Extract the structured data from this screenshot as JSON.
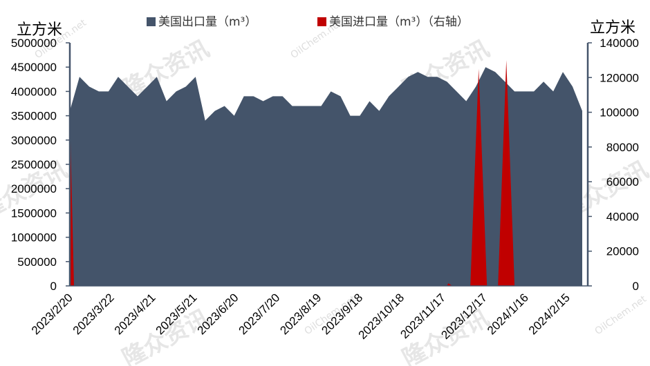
{
  "chart_data": {
    "type": "area",
    "left_unit": "立方米",
    "right_unit": "立方米",
    "legend_position": "top",
    "colors": {
      "export": "#44546a",
      "import": "#c00000",
      "axis": "#44546a"
    },
    "left_axis": {
      "ylim": [
        0,
        5000000
      ],
      "ticks": [
        "0",
        "500000",
        "1000000",
        "1500000",
        "2000000",
        "2500000",
        "3000000",
        "3500000",
        "4000000",
        "4500000",
        "5000000"
      ]
    },
    "right_axis": {
      "ylim": [
        0,
        140000
      ],
      "ticks": [
        "0",
        "20000",
        "40000",
        "60000",
        "80000",
        "100000",
        "120000",
        "140000"
      ]
    },
    "x_tick_labels": [
      "2023/2/20",
      "2023/3/22",
      "2023/4/21",
      "2023/5/21",
      "2023/6/20",
      "2023/7/20",
      "2023/8/19",
      "2023/9/18",
      "2023/10/18",
      "2023/11/17",
      "2023/12/17",
      "2024/1/16",
      "2024/2/15"
    ],
    "x_range": [
      "2023/2/20",
      "2024/3/1"
    ],
    "series": [
      {
        "name": "美国出口量（m³）",
        "axis": "left",
        "points": [
          [
            "2023/2/20",
            3600000
          ],
          [
            "2023/2/27",
            4300000
          ],
          [
            "2023/3/6",
            4100000
          ],
          [
            "2023/3/13",
            4000000
          ],
          [
            "2023/3/20",
            4000000
          ],
          [
            "2023/3/27",
            4300000
          ],
          [
            "2023/4/3",
            4100000
          ],
          [
            "2023/4/10",
            3900000
          ],
          [
            "2023/4/17",
            4100000
          ],
          [
            "2023/4/24",
            4300000
          ],
          [
            "2023/5/1",
            3800000
          ],
          [
            "2023/5/8",
            4000000
          ],
          [
            "2023/5/15",
            4100000
          ],
          [
            "2023/5/22",
            4300000
          ],
          [
            "2023/5/29",
            3400000
          ],
          [
            "2023/6/5",
            3600000
          ],
          [
            "2023/6/12",
            3700000
          ],
          [
            "2023/6/19",
            3500000
          ],
          [
            "2023/6/26",
            3900000
          ],
          [
            "2023/7/3",
            3900000
          ],
          [
            "2023/7/10",
            3800000
          ],
          [
            "2023/7/17",
            3900000
          ],
          [
            "2023/7/24",
            3900000
          ],
          [
            "2023/7/31",
            3700000
          ],
          [
            "2023/8/7",
            3700000
          ],
          [
            "2023/8/14",
            3700000
          ],
          [
            "2023/8/21",
            3700000
          ],
          [
            "2023/8/28",
            4000000
          ],
          [
            "2023/9/4",
            3900000
          ],
          [
            "2023/9/11",
            3500000
          ],
          [
            "2023/9/18",
            3500000
          ],
          [
            "2023/9/25",
            3800000
          ],
          [
            "2023/10/2",
            3600000
          ],
          [
            "2023/10/9",
            3900000
          ],
          [
            "2023/10/16",
            4100000
          ],
          [
            "2023/10/23",
            4300000
          ],
          [
            "2023/10/30",
            4400000
          ],
          [
            "2023/11/6",
            4300000
          ],
          [
            "2023/11/13",
            4300000
          ],
          [
            "2023/11/20",
            4200000
          ],
          [
            "2023/11/27",
            4000000
          ],
          [
            "2023/12/4",
            3800000
          ],
          [
            "2023/12/11",
            4100000
          ],
          [
            "2023/12/18",
            4500000
          ],
          [
            "2023/12/25",
            4400000
          ],
          [
            "2024/1/1",
            4200000
          ],
          [
            "2024/1/8",
            4000000
          ],
          [
            "2024/1/15",
            4000000
          ],
          [
            "2024/1/22",
            4000000
          ],
          [
            "2024/1/29",
            4200000
          ],
          [
            "2024/2/5",
            4000000
          ],
          [
            "2024/2/12",
            4400000
          ],
          [
            "2024/2/19",
            4100000
          ],
          [
            "2024/2/26",
            3600000
          ]
        ]
      },
      {
        "name": "美国进口量（m³）",
        "axis": "right",
        "points": [
          [
            "2023/2/20",
            100000
          ],
          [
            "2023/2/23",
            0
          ],
          [
            "2023/11/20",
            0
          ],
          [
            "2023/11/21",
            1500
          ],
          [
            "2023/11/24",
            0
          ],
          [
            "2023/12/7",
            0
          ],
          [
            "2023/12/13",
            125000
          ],
          [
            "2023/12/19",
            0
          ],
          [
            "2023/12/27",
            0
          ],
          [
            "2024/1/2",
            130000
          ],
          [
            "2024/1/8",
            0
          ]
        ]
      }
    ],
    "legend": [
      "美国出口量（m³）",
      "美国进口量（m³）（右轴）"
    ],
    "watermark": {
      "logo_text": "隆众资讯",
      "site": "OilChem.net"
    }
  }
}
